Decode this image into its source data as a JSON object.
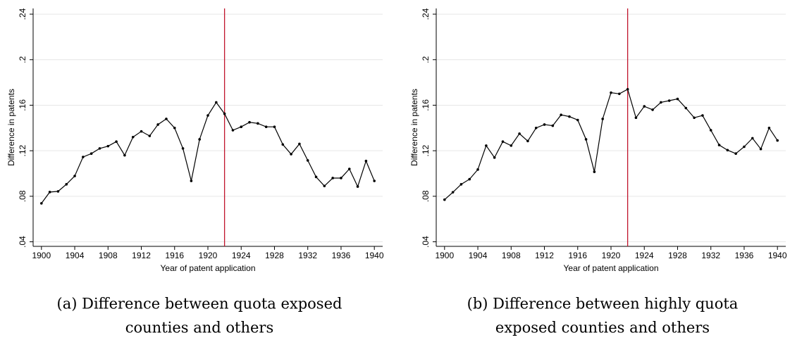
{
  "chart_data": [
    {
      "type": "line",
      "ylabel": "Difference in patents",
      "xlabel": "Year of patent application",
      "caption": [
        "(a) Difference between quota exposed",
        "counties and others"
      ],
      "x": [
        1900,
        1901,
        1902,
        1903,
        1904,
        1905,
        1906,
        1907,
        1908,
        1909,
        1910,
        1911,
        1912,
        1913,
        1914,
        1915,
        1916,
        1917,
        1918,
        1919,
        1920,
        1921,
        1922,
        1923,
        1924,
        1925,
        1926,
        1927,
        1928,
        1929,
        1930,
        1931,
        1932,
        1933,
        1934,
        1935,
        1936,
        1937,
        1938,
        1939,
        1940
      ],
      "values": [
        0.0738,
        0.0837,
        0.0843,
        0.0905,
        0.0978,
        0.1145,
        0.1175,
        0.122,
        0.124,
        0.128,
        0.116,
        0.132,
        0.137,
        0.133,
        0.143,
        0.148,
        0.14,
        0.122,
        0.0935,
        0.13,
        0.151,
        0.1625,
        0.1525,
        0.138,
        0.141,
        0.145,
        0.144,
        0.141,
        0.141,
        0.1255,
        0.117,
        0.126,
        0.1115,
        0.097,
        0.089,
        0.096,
        0.096,
        0.104,
        0.0885,
        0.111,
        0.0935
      ],
      "color": "#000000",
      "vline": 1922,
      "vline_color": "#c0142c",
      "xlim": [
        1899,
        1941
      ],
      "xticks": [
        1900,
        1904,
        1908,
        1912,
        1916,
        1920,
        1924,
        1928,
        1932,
        1936,
        1940
      ],
      "ylim": [
        0.036,
        0.245
      ],
      "yticks": [
        {
          "value": 0.04,
          "label": ".04"
        },
        {
          "value": 0.08,
          "label": ".08"
        },
        {
          "value": 0.12,
          "label": ".12"
        },
        {
          "value": 0.16,
          "label": ".16"
        },
        {
          "value": 0.2,
          "label": ".2"
        },
        {
          "value": 0.24,
          "label": ".24"
        }
      ],
      "grid": true
    },
    {
      "type": "line",
      "ylabel": "Difference in patents",
      "xlabel": "Year of patent application",
      "caption": [
        "(b) Difference between highly quota",
        "exposed counties and others"
      ],
      "x": [
        1900,
        1901,
        1902,
        1903,
        1904,
        1905,
        1906,
        1907,
        1908,
        1909,
        1910,
        1911,
        1912,
        1913,
        1914,
        1915,
        1916,
        1917,
        1918,
        1919,
        1920,
        1921,
        1922,
        1923,
        1924,
        1925,
        1926,
        1927,
        1928,
        1929,
        1930,
        1931,
        1932,
        1933,
        1934,
        1935,
        1936,
        1937,
        1938,
        1939,
        1940
      ],
      "values": [
        0.077,
        0.0835,
        0.0905,
        0.095,
        0.1035,
        0.1245,
        0.114,
        0.128,
        0.1245,
        0.135,
        0.1285,
        0.14,
        0.143,
        0.142,
        0.1515,
        0.15,
        0.147,
        0.13,
        0.1015,
        0.148,
        0.171,
        0.17,
        0.174,
        0.149,
        0.159,
        0.156,
        0.1625,
        0.164,
        0.1655,
        0.1575,
        0.149,
        0.151,
        0.138,
        0.125,
        0.1205,
        0.1175,
        0.1235,
        0.131,
        0.1215,
        0.14,
        0.129
      ],
      "color": "#000000",
      "vline": 1922,
      "vline_color": "#c0142c",
      "xlim": [
        1899,
        1941
      ],
      "xticks": [
        1900,
        1904,
        1908,
        1912,
        1916,
        1920,
        1924,
        1928,
        1932,
        1936,
        1940
      ],
      "ylim": [
        0.036,
        0.245
      ],
      "yticks": [
        {
          "value": 0.04,
          "label": ".04"
        },
        {
          "value": 0.08,
          "label": ".08"
        },
        {
          "value": 0.12,
          "label": ".12"
        },
        {
          "value": 0.16,
          "label": ".16"
        },
        {
          "value": 0.2,
          "label": ".2"
        },
        {
          "value": 0.24,
          "label": ".24"
        }
      ],
      "grid": true
    }
  ]
}
